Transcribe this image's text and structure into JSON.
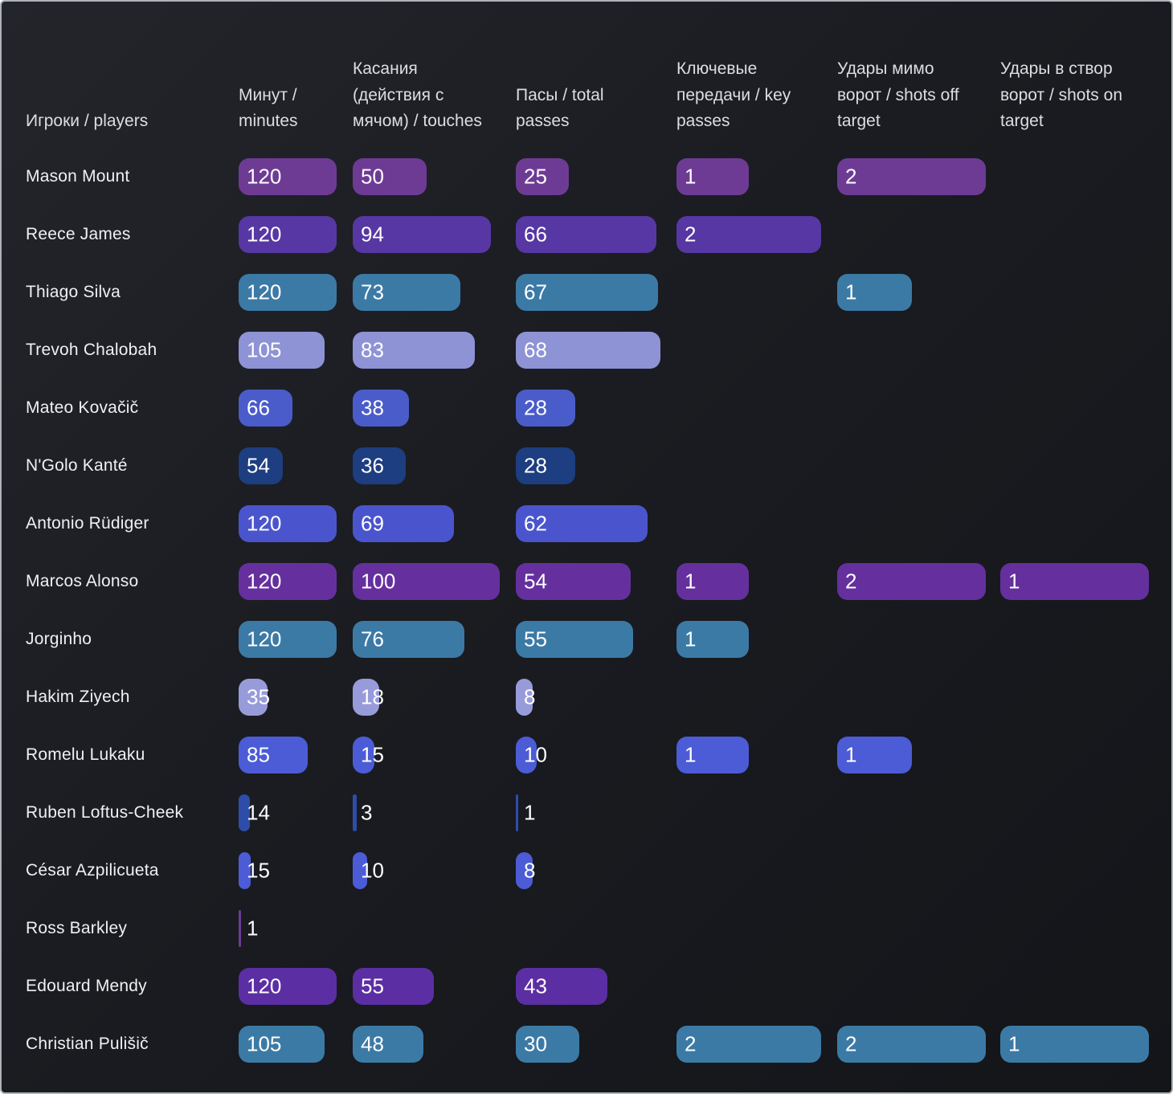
{
  "chart_data": {
    "type": "bar-table",
    "title": "",
    "legend": "none",
    "grid": false,
    "columns": [
      {
        "key": "player",
        "label": "Игроки / players",
        "max": null
      },
      {
        "key": "minutes",
        "label": "Минут / minutes",
        "max": 120
      },
      {
        "key": "touches",
        "label": "Касания (действия с мячом) / touches",
        "max": 100
      },
      {
        "key": "passes",
        "label": "Пасы / total passes",
        "max": 68
      },
      {
        "key": "key_passes",
        "label": "Ключевые передачи / key passes",
        "max": 2
      },
      {
        "key": "shots_off",
        "label": "Удары мимо ворот / shots off target",
        "max": 2
      },
      {
        "key": "shots_on",
        "label": "Удары в створ ворот / shots on target",
        "max": 1
      }
    ],
    "rows": [
      {
        "player": "Mason Mount",
        "color": "#6d3b94",
        "values": [
          120,
          50,
          25,
          1,
          2,
          null
        ]
      },
      {
        "player": "Reece James",
        "color": "#5737a3",
        "values": [
          120,
          94,
          66,
          2,
          null,
          null
        ]
      },
      {
        "player": "Thiago Silva",
        "color": "#3c7aa6",
        "values": [
          120,
          73,
          67,
          null,
          1,
          null
        ]
      },
      {
        "player": "Trevoh Chalobah",
        "color": "#8e93d6",
        "values": [
          105,
          83,
          68,
          null,
          null,
          null
        ]
      },
      {
        "player": "Mateo Kovačič",
        "color": "#4a5cc9",
        "values": [
          66,
          38,
          28,
          null,
          null,
          null
        ]
      },
      {
        "player": "N'Golo Kanté",
        "color": "#1d3e80",
        "values": [
          54,
          36,
          28,
          null,
          null,
          null
        ]
      },
      {
        "player": "Antonio Rüdiger",
        "color": "#4a55cd",
        "values": [
          120,
          69,
          62,
          null,
          null,
          null
        ]
      },
      {
        "player": "Marcos Alonso",
        "color": "#65309e",
        "values": [
          120,
          100,
          54,
          1,
          2,
          1
        ]
      },
      {
        "player": "Jorginho",
        "color": "#3c7aa6",
        "values": [
          120,
          76,
          55,
          1,
          null,
          null
        ]
      },
      {
        "player": "Hakim Ziyech",
        "color": "#989bda",
        "values": [
          35,
          18,
          8,
          null,
          null,
          null
        ]
      },
      {
        "player": "Romelu Lukaku",
        "color": "#4c5cd6",
        "values": [
          85,
          15,
          10,
          1,
          1,
          null
        ]
      },
      {
        "player": "Ruben Loftus-Cheek",
        "color": "#2e4da8",
        "values": [
          14,
          3,
          1,
          null,
          null,
          null
        ]
      },
      {
        "player": "César Azpilicueta",
        "color": "#4c5cd6",
        "values": [
          15,
          10,
          8,
          null,
          null,
          null
        ]
      },
      {
        "player": "Ross Barkley",
        "color": "#6d3b94",
        "values": [
          1,
          null,
          null,
          null,
          null,
          null
        ]
      },
      {
        "player": "Edouard Mendy",
        "color": "#5c2ea3",
        "values": [
          120,
          55,
          43,
          null,
          null,
          null
        ]
      },
      {
        "player": "Christian Pulišič",
        "color": "#3c7aa6",
        "values": [
          105,
          48,
          30,
          2,
          2,
          1
        ]
      }
    ]
  }
}
